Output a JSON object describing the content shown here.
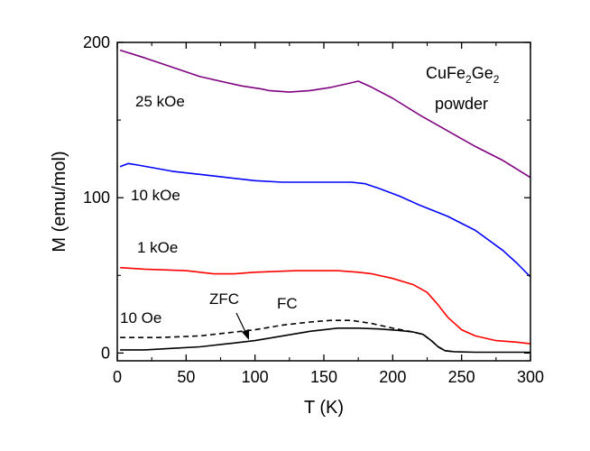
{
  "chart_data": {
    "type": "line",
    "xlabel": "T (K)",
    "ylabel": "M (emu/mol)",
    "xlim": [
      0,
      300
    ],
    "ylim": [
      -5,
      200
    ],
    "x_ticks": [
      0,
      50,
      100,
      150,
      200,
      250,
      300
    ],
    "y_ticks": [
      0,
      100,
      200
    ],
    "grid": false,
    "sample_label": {
      "line1_prefix": "CuFe",
      "sub1": "2",
      "line1_mid": "Ge",
      "sub2": "2",
      "line2": "powder"
    },
    "annotations": {
      "zfc": "ZFC",
      "fc": "FC"
    },
    "series": [
      {
        "name": "25 kOe",
        "color": "#800080",
        "style": "solid",
        "points": [
          [
            2,
            195
          ],
          [
            20,
            190
          ],
          [
            30,
            187
          ],
          [
            60,
            178
          ],
          [
            90,
            172
          ],
          [
            105,
            170
          ],
          [
            110,
            169
          ],
          [
            125,
            168
          ],
          [
            140,
            169
          ],
          [
            155,
            171
          ],
          [
            165,
            173
          ],
          [
            175,
            175
          ],
          [
            185,
            171
          ],
          [
            200,
            164
          ],
          [
            220,
            153
          ],
          [
            240,
            143
          ],
          [
            260,
            133
          ],
          [
            280,
            124
          ],
          [
            300,
            113
          ]
        ]
      },
      {
        "name": "10 kOe",
        "color": "#0000ff",
        "style": "solid",
        "points": [
          [
            2,
            120
          ],
          [
            8,
            122
          ],
          [
            15,
            121
          ],
          [
            40,
            117
          ],
          [
            70,
            114
          ],
          [
            100,
            111
          ],
          [
            120,
            110
          ],
          [
            150,
            110
          ],
          [
            170,
            110
          ],
          [
            180,
            109
          ],
          [
            190,
            106
          ],
          [
            205,
            101
          ],
          [
            220,
            95
          ],
          [
            240,
            88
          ],
          [
            260,
            79
          ],
          [
            280,
            66
          ],
          [
            290,
            58
          ],
          [
            300,
            49
          ]
        ]
      },
      {
        "name": "1 kOe",
        "color": "#ff0000",
        "style": "solid",
        "points": [
          [
            2,
            55
          ],
          [
            20,
            54
          ],
          [
            50,
            53
          ],
          [
            70,
            51
          ],
          [
            85,
            51
          ],
          [
            100,
            52
          ],
          [
            130,
            53
          ],
          [
            160,
            53
          ],
          [
            175,
            52
          ],
          [
            185,
            51
          ],
          [
            200,
            48
          ],
          [
            215,
            44
          ],
          [
            225,
            39
          ],
          [
            232,
            32
          ],
          [
            240,
            23
          ],
          [
            250,
            15
          ],
          [
            260,
            11
          ],
          [
            275,
            8
          ],
          [
            290,
            7
          ],
          [
            300,
            6
          ]
        ]
      },
      {
        "name": "10 Oe",
        "color": "#000000",
        "style": "solid",
        "points": [
          [
            2,
            2
          ],
          [
            20,
            2
          ],
          [
            40,
            3
          ],
          [
            60,
            4
          ],
          [
            80,
            6
          ],
          [
            100,
            8
          ],
          [
            120,
            11
          ],
          [
            140,
            14
          ],
          [
            160,
            16
          ],
          [
            175,
            16
          ],
          [
            190,
            15.5
          ],
          [
            205,
            14.5
          ],
          [
            215,
            13.5
          ],
          [
            222,
            12
          ],
          [
            228,
            8
          ],
          [
            233,
            4
          ],
          [
            238,
            1.5
          ],
          [
            245,
            0.8
          ],
          [
            260,
            0.5
          ],
          [
            300,
            0.5
          ]
        ]
      },
      {
        "name": "FC",
        "color": "#000000",
        "style": "dashed",
        "points": [
          [
            2,
            10
          ],
          [
            30,
            10
          ],
          [
            60,
            11
          ],
          [
            80,
            13
          ],
          [
            100,
            15
          ],
          [
            120,
            18
          ],
          [
            140,
            20
          ],
          [
            155,
            21
          ],
          [
            170,
            21
          ],
          [
            185,
            19
          ],
          [
            200,
            16
          ],
          [
            215,
            13.5
          ],
          [
            222,
            12
          ],
          [
            228,
            8
          ],
          [
            233,
            4
          ],
          [
            238,
            1.5
          ],
          [
            245,
            0.8
          ]
        ]
      }
    ],
    "series_labels": [
      {
        "series": 0,
        "text": "25 kOe"
      },
      {
        "series": 1,
        "text": "10 kOe"
      },
      {
        "series": 2,
        "text": "1 kOe"
      },
      {
        "series": 3,
        "text": "10 Oe"
      }
    ]
  }
}
